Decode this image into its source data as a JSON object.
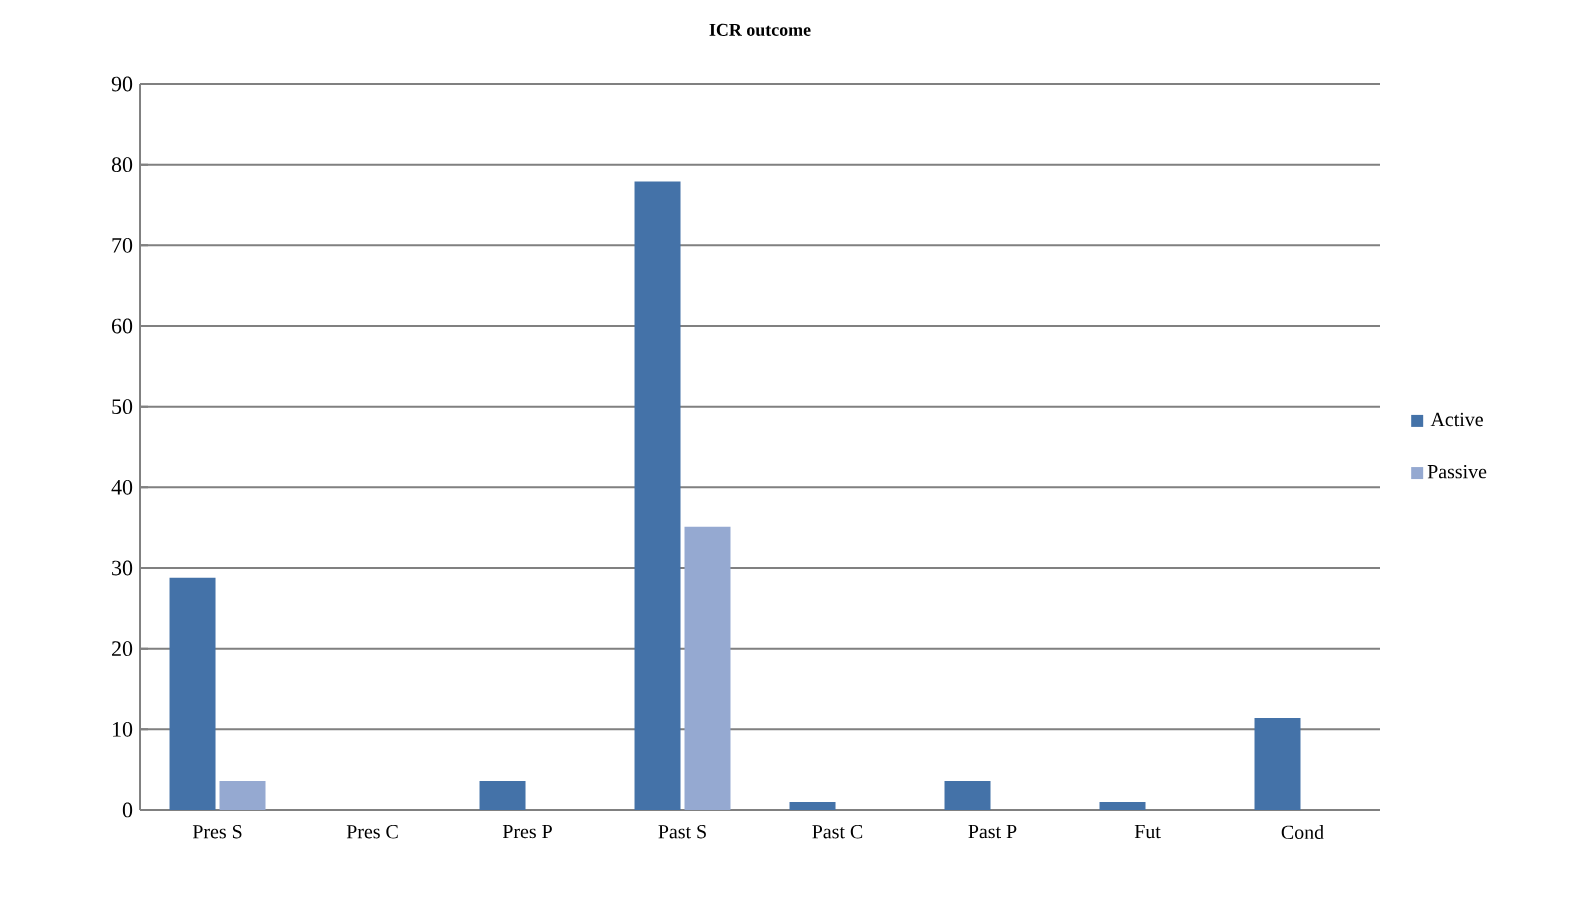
{
  "chart_data": {
    "type": "bar",
    "title": "ICR outcome",
    "categories": [
      "Pres S",
      "Pres C",
      "Pres P",
      "Past S",
      "Past C",
      "Past P",
      "Fut",
      "Cond"
    ],
    "series": [
      {
        "name": "Active",
        "color": "#4472a8",
        "values": [
          28.8,
          0,
          3.6,
          77.9,
          1,
          3.6,
          1,
          11.4
        ]
      },
      {
        "name": "Passive",
        "color": "#95a9d1",
        "values": [
          3.6,
          0,
          0,
          35.1,
          0,
          0,
          0,
          0
        ]
      }
    ],
    "ylim": [
      0,
      90
    ],
    "yticks": [
      0,
      10,
      20,
      30,
      40,
      50,
      60,
      70,
      80,
      90
    ],
    "grid": "y",
    "legend": "right"
  }
}
